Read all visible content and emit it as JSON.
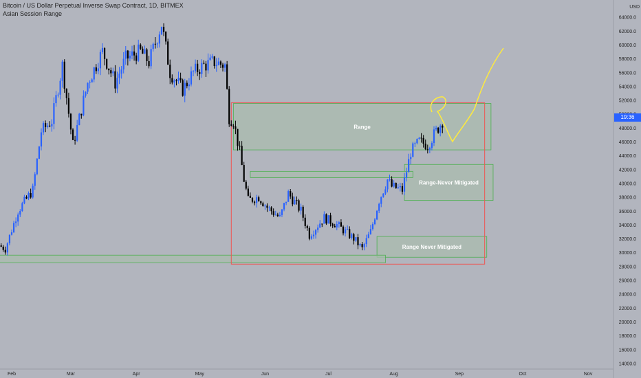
{
  "header": {
    "title": "Bitcoin / US Dollar Perpetual Inverse Swap Contract, 1D, BITMEX",
    "indicator": "Asian Session Range"
  },
  "price_badge": "19:36",
  "currency": "USD",
  "colors": {
    "background": "#b2b5be",
    "up_candle": "#2962ff",
    "down_candle": "#000000",
    "zone_fill": "#a9bcae",
    "zone_border": "#4caf50",
    "range_box": "#ef5350",
    "drawing": "#ffeb3b"
  },
  "chart_data": {
    "type": "candlestick",
    "title": "Bitcoin / US Dollar Perpetual Inverse Swap Contract, 1D, BITMEX",
    "y_axis": {
      "label": "USD",
      "ylim": [
        13600,
        65400
      ],
      "ticks": [
        14000,
        16000,
        18000,
        20000,
        22000,
        24000,
        26000,
        28000,
        30000,
        32000,
        34000,
        36000,
        38000,
        40000,
        42000,
        44000,
        46000,
        48000,
        50000,
        52000,
        54000,
        56000,
        58000,
        60000,
        62000,
        64000
      ],
      "tick_labels": [
        "14000.0",
        "16000.0",
        "18000.0",
        "20000.0",
        "22000.0",
        "24000.0",
        "26000.0",
        "28000.0",
        "30000.0",
        "32000.0",
        "34000.0",
        "36000.0",
        "38000.0",
        "40000.0",
        "42000.0",
        "44000.0",
        "46000.0",
        "48000.0",
        "50000.0",
        "52000.0",
        "54000.0",
        "56000.0",
        "58000.0",
        "60000.0",
        "62000.0",
        "64000.0"
      ]
    },
    "x_axis": {
      "labels": [
        "Feb",
        "Mar",
        "Apr",
        "May",
        "Jun",
        "Jul",
        "Aug",
        "Sep",
        "Oct",
        "Nov"
      ],
      "label_days": [
        0,
        28,
        59,
        89,
        120,
        150,
        181,
        212,
        242,
        273
      ]
    },
    "anchors": [
      {
        "d": -6,
        "p": 31000
      },
      {
        "d": -3,
        "p": 30500
      },
      {
        "d": 3,
        "p": 36000
      },
      {
        "d": 10,
        "p": 39000
      },
      {
        "d": 14,
        "p": 47500
      },
      {
        "d": 19,
        "p": 49000
      },
      {
        "d": 24,
        "p": 57000
      },
      {
        "d": 29,
        "p": 45500
      },
      {
        "d": 36,
        "p": 54500
      },
      {
        "d": 43,
        "p": 59000
      },
      {
        "d": 49,
        "p": 54500
      },
      {
        "d": 54,
        "p": 58000
      },
      {
        "d": 61,
        "p": 59000
      },
      {
        "d": 65,
        "p": 57500
      },
      {
        "d": 71,
        "p": 63000
      },
      {
        "d": 75,
        "p": 56000
      },
      {
        "d": 81,
        "p": 53500
      },
      {
        "d": 86,
        "p": 56000
      },
      {
        "d": 91,
        "p": 57000
      },
      {
        "d": 96,
        "p": 57500
      },
      {
        "d": 101,
        "p": 57000
      },
      {
        "d": 103,
        "p": 49500
      },
      {
        "d": 105,
        "p": 49000
      },
      {
        "d": 108,
        "p": 44500
      },
      {
        "d": 110,
        "p": 40500
      },
      {
        "d": 112,
        "p": 37500
      },
      {
        "d": 117,
        "p": 38000
      },
      {
        "d": 121,
        "p": 36500
      },
      {
        "d": 127,
        "p": 35000
      },
      {
        "d": 131,
        "p": 38500
      },
      {
        "d": 137,
        "p": 36000
      },
      {
        "d": 141,
        "p": 32500
      },
      {
        "d": 148,
        "p": 35000
      },
      {
        "d": 154,
        "p": 34000
      },
      {
        "d": 158,
        "p": 33000
      },
      {
        "d": 162,
        "p": 32000
      },
      {
        "d": 166,
        "p": 30500
      },
      {
        "d": 170,
        "p": 33000
      },
      {
        "d": 174,
        "p": 37500
      },
      {
        "d": 178,
        "p": 40500
      },
      {
        "d": 180,
        "p": 39500
      },
      {
        "d": 185,
        "p": 39000
      },
      {
        "d": 189,
        "p": 44500
      },
      {
        "d": 193,
        "p": 46000
      },
      {
        "d": 197,
        "p": 45500
      },
      {
        "d": 201,
        "p": 47500
      },
      {
        "d": 204,
        "p": 49000
      }
    ],
    "range_boxes": [
      {
        "label": "Range",
        "x0": 105,
        "x1": 227,
        "y0": 44800,
        "y1": 51500
      },
      {
        "label": "Range-Never Mitigated",
        "x0": 186,
        "x1": 228,
        "y0": 37500,
        "y1": 42700
      },
      {
        "label": "Range Never Mitigated",
        "x0": 173,
        "x1": 225,
        "y0": 29300,
        "y1": 32300
      },
      {
        "label": "",
        "x0": -8,
        "x1": 177,
        "y0": 28500,
        "y1": 29600
      },
      {
        "label": "",
        "x0": 113,
        "x1": 190,
        "y0": 40800,
        "y1": 41700
      }
    ],
    "red_box": {
      "x0": 104,
      "x1": 224,
      "y0": 28300,
      "y1": 51600
    },
    "grid": false,
    "legend": "none"
  }
}
